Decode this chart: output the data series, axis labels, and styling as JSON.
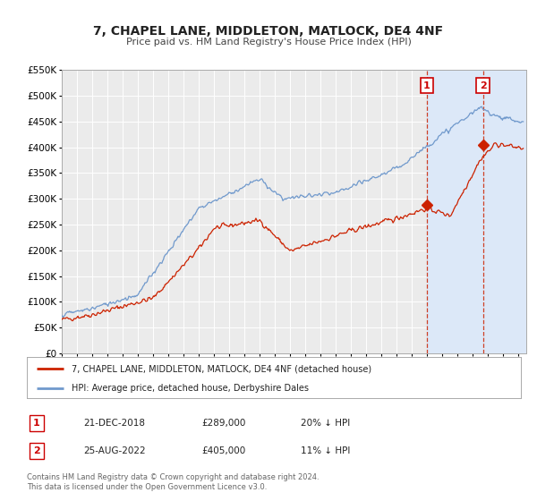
{
  "title": "7, CHAPEL LANE, MIDDLETON, MATLOCK, DE4 4NF",
  "subtitle": "Price paid vs. HM Land Registry's House Price Index (HPI)",
  "ylim": [
    0,
    550000
  ],
  "xlim_start": 1995.0,
  "xlim_end": 2025.5,
  "background_color": "#ffffff",
  "plot_bg_color": "#ebebeb",
  "grid_color": "#ffffff",
  "hpi_color": "#7099cc",
  "price_color": "#cc2200",
  "sale1_date": 2018.97,
  "sale1_price": 289000,
  "sale1_label": "1",
  "sale2_date": 2022.65,
  "sale2_price": 405000,
  "sale2_label": "2",
  "legend_line1": "7, CHAPEL LANE, MIDDLETON, MATLOCK, DE4 4NF (detached house)",
  "legend_line2": "HPI: Average price, detached house, Derbyshire Dales",
  "table_row1_num": "1",
  "table_row1_date": "21-DEC-2018",
  "table_row1_price": "£289,000",
  "table_row1_hpi": "20% ↓ HPI",
  "table_row2_num": "2",
  "table_row2_date": "25-AUG-2022",
  "table_row2_price": "£405,000",
  "table_row2_hpi": "11% ↓ HPI",
  "footnote1": "Contains HM Land Registry data © Crown copyright and database right 2024.",
  "footnote2": "This data is licensed under the Open Government Licence v3.0.",
  "shaded_region_start": 2018.97,
  "shaded_region_end": 2025.5,
  "shaded_color": "#dce8f8"
}
